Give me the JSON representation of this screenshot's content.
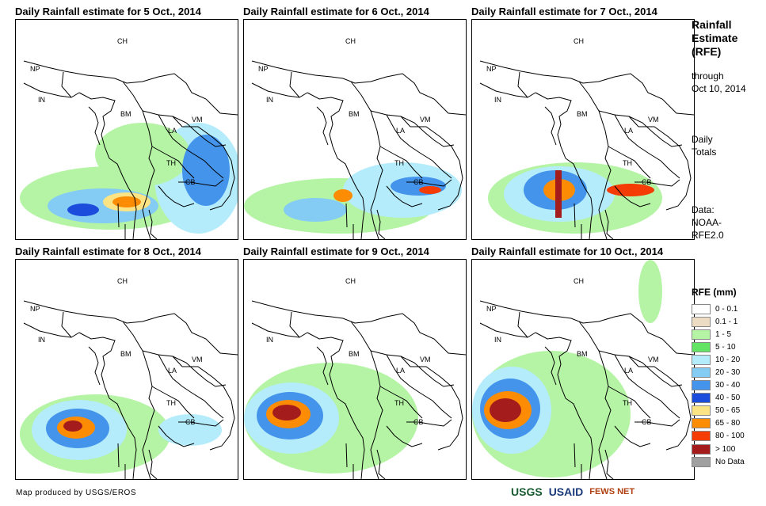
{
  "panels": [
    {
      "title": "Daily Rainfall estimate for 5 Oct., 2014"
    },
    {
      "title": "Daily Rainfall estimate for 6 Oct., 2014"
    },
    {
      "title": "Daily Rainfall estimate for 7 Oct., 2014"
    },
    {
      "title": "Daily Rainfall estimate for 8 Oct., 2014"
    },
    {
      "title": "Daily Rainfall estimate for 9 Oct., 2014"
    },
    {
      "title": "Daily Rainfall estimate for 10 Oct., 2014"
    }
  ],
  "country_labels": {
    "ch": "CH",
    "np": "NP",
    "in": "IN",
    "bm": "BM",
    "la": "LA",
    "vm": "VM",
    "th": "TH",
    "cb": "CB"
  },
  "sidebar": {
    "title_line1": "Rainfall",
    "title_line2": "Estimate",
    "title_line3": "(RFE)",
    "through": "through",
    "through_date": "Oct 10, 2014",
    "daily1": "Daily",
    "daily2": "Totals",
    "data1": "Data:",
    "data2": "NOAA-",
    "data3": "RFE2.0"
  },
  "legend": {
    "title": "RFE (mm)",
    "items": [
      {
        "label": "0 - 0.1",
        "color": "#ffffff"
      },
      {
        "label": "0.1 - 1",
        "color": "#ecdcc4"
      },
      {
        "label": "1 - 5",
        "color": "#b4f4a4"
      },
      {
        "label": "5 - 10",
        "color": "#64e464"
      },
      {
        "label": "10 - 20",
        "color": "#b4ecfc"
      },
      {
        "label": "20 - 30",
        "color": "#84ccf4"
      },
      {
        "label": "30 - 40",
        "color": "#4494ec"
      },
      {
        "label": "40 - 50",
        "color": "#1c4cdc"
      },
      {
        "label": "50 - 65",
        "color": "#fce484"
      },
      {
        "label": "65 - 80",
        "color": "#fc8c04"
      },
      {
        "label": "80 - 100",
        "color": "#f43c04"
      },
      {
        "label": "> 100",
        "color": "#a41c1c"
      },
      {
        "label": "No Data",
        "color": "#a0a0a0"
      }
    ]
  },
  "credit": "Map produced by USGS/EROS",
  "logos": {
    "usgs": "USGS",
    "usaid": "USAID",
    "fews": "FEWS NET"
  }
}
